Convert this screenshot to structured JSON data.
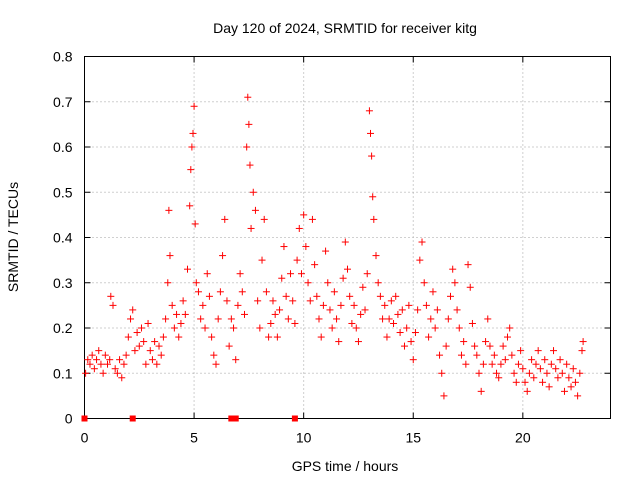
{
  "chart_data": {
    "type": "scatter",
    "title": "Day 120 of 2024, SRMTID for receiver kitg",
    "xlabel": "GPS time / hours",
    "ylabel": "SRMTID / TECUs",
    "xlim": [
      0,
      24
    ],
    "ylim": [
      0,
      0.8
    ],
    "x_ticks": [
      0,
      5,
      10,
      15,
      20
    ],
    "y_ticks": [
      0,
      0.1,
      0.2,
      0.3,
      0.4,
      0.5,
      0.6,
      0.7,
      0.8
    ],
    "x_tick_labels": [
      "0",
      "5",
      "10",
      "15",
      "20"
    ],
    "y_tick_labels": [
      "0",
      "0.1",
      "0.2",
      "0.3",
      "0.4",
      "0.5",
      "0.6",
      "0.7",
      "0.8"
    ],
    "grid": true,
    "marker": "+",
    "color": "#ff0000",
    "zero_markers_x": [
      0.0,
      2.2,
      6.7,
      6.9,
      9.6
    ],
    "points": [
      [
        0.05,
        0.1
      ],
      [
        0.15,
        0.13
      ],
      [
        0.25,
        0.12
      ],
      [
        0.35,
        0.14
      ],
      [
        0.45,
        0.11
      ],
      [
        0.55,
        0.13
      ],
      [
        0.65,
        0.15
      ],
      [
        0.75,
        0.12
      ],
      [
        0.85,
        0.1
      ],
      [
        0.95,
        0.14
      ],
      [
        1.05,
        0.12
      ],
      [
        1.15,
        0.13
      ],
      [
        1.2,
        0.27
      ],
      [
        1.3,
        0.25
      ],
      [
        1.4,
        0.11
      ],
      [
        1.5,
        0.1
      ],
      [
        1.6,
        0.13
      ],
      [
        1.7,
        0.09
      ],
      [
        1.8,
        0.12
      ],
      [
        1.9,
        0.14
      ],
      [
        2.0,
        0.18
      ],
      [
        2.1,
        0.22
      ],
      [
        2.2,
        0.24
      ],
      [
        2.3,
        0.15
      ],
      [
        2.4,
        0.19
      ],
      [
        2.5,
        0.16
      ],
      [
        2.6,
        0.2
      ],
      [
        2.7,
        0.17
      ],
      [
        2.8,
        0.12
      ],
      [
        2.9,
        0.21
      ],
      [
        3.0,
        0.15
      ],
      [
        3.1,
        0.13
      ],
      [
        3.2,
        0.17
      ],
      [
        3.3,
        0.12
      ],
      [
        3.4,
        0.16
      ],
      [
        3.5,
        0.14
      ],
      [
        3.6,
        0.18
      ],
      [
        3.7,
        0.22
      ],
      [
        3.8,
        0.3
      ],
      [
        3.85,
        0.46
      ],
      [
        3.9,
        0.36
      ],
      [
        4.0,
        0.25
      ],
      [
        4.1,
        0.2
      ],
      [
        4.2,
        0.23
      ],
      [
        4.3,
        0.18
      ],
      [
        4.4,
        0.21
      ],
      [
        4.5,
        0.26
      ],
      [
        4.6,
        0.23
      ],
      [
        4.7,
        0.33
      ],
      [
        4.8,
        0.47
      ],
      [
        4.85,
        0.55
      ],
      [
        4.9,
        0.6
      ],
      [
        4.95,
        0.63
      ],
      [
        5.0,
        0.69
      ],
      [
        5.05,
        0.43
      ],
      [
        5.1,
        0.3
      ],
      [
        5.2,
        0.28
      ],
      [
        5.3,
        0.22
      ],
      [
        5.4,
        0.25
      ],
      [
        5.5,
        0.2
      ],
      [
        5.6,
        0.32
      ],
      [
        5.7,
        0.27
      ],
      [
        5.8,
        0.18
      ],
      [
        5.9,
        0.14
      ],
      [
        6.0,
        0.12
      ],
      [
        6.1,
        0.22
      ],
      [
        6.2,
        0.28
      ],
      [
        6.3,
        0.36
      ],
      [
        6.4,
        0.44
      ],
      [
        6.5,
        0.26
      ],
      [
        6.6,
        0.16
      ],
      [
        6.7,
        0.22
      ],
      [
        6.8,
        0.2
      ],
      [
        6.9,
        0.13
      ],
      [
        7.0,
        0.25
      ],
      [
        7.1,
        0.32
      ],
      [
        7.2,
        0.28
      ],
      [
        7.3,
        0.23
      ],
      [
        7.4,
        0.6
      ],
      [
        7.45,
        0.71
      ],
      [
        7.5,
        0.65
      ],
      [
        7.55,
        0.56
      ],
      [
        7.6,
        0.42
      ],
      [
        7.7,
        0.5
      ],
      [
        7.8,
        0.46
      ],
      [
        7.9,
        0.26
      ],
      [
        8.0,
        0.2
      ],
      [
        8.1,
        0.35
      ],
      [
        8.2,
        0.44
      ],
      [
        8.3,
        0.28
      ],
      [
        8.4,
        0.18
      ],
      [
        8.5,
        0.21
      ],
      [
        8.6,
        0.26
      ],
      [
        8.7,
        0.23
      ],
      [
        8.8,
        0.18
      ],
      [
        8.9,
        0.24
      ],
      [
        9.0,
        0.31
      ],
      [
        9.1,
        0.38
      ],
      [
        9.2,
        0.27
      ],
      [
        9.3,
        0.22
      ],
      [
        9.4,
        0.32
      ],
      [
        9.5,
        0.26
      ],
      [
        9.6,
        0.21
      ],
      [
        9.7,
        0.35
      ],
      [
        9.8,
        0.42
      ],
      [
        9.9,
        0.32
      ],
      [
        10.0,
        0.45
      ],
      [
        10.1,
        0.38
      ],
      [
        10.2,
        0.3
      ],
      [
        10.3,
        0.26
      ],
      [
        10.4,
        0.44
      ],
      [
        10.5,
        0.34
      ],
      [
        10.6,
        0.27
      ],
      [
        10.7,
        0.22
      ],
      [
        10.8,
        0.18
      ],
      [
        10.9,
        0.25
      ],
      [
        11.0,
        0.37
      ],
      [
        11.1,
        0.3
      ],
      [
        11.2,
        0.24
      ],
      [
        11.3,
        0.2
      ],
      [
        11.4,
        0.28
      ],
      [
        11.5,
        0.22
      ],
      [
        11.6,
        0.17
      ],
      [
        11.7,
        0.25
      ],
      [
        11.8,
        0.31
      ],
      [
        11.9,
        0.39
      ],
      [
        12.0,
        0.33
      ],
      [
        12.1,
        0.27
      ],
      [
        12.2,
        0.21
      ],
      [
        12.3,
        0.25
      ],
      [
        12.4,
        0.2
      ],
      [
        12.5,
        0.17
      ],
      [
        12.6,
        0.23
      ],
      [
        12.7,
        0.29
      ],
      [
        12.8,
        0.24
      ],
      [
        12.9,
        0.32
      ],
      [
        13.0,
        0.68
      ],
      [
        13.05,
        0.63
      ],
      [
        13.1,
        0.58
      ],
      [
        13.15,
        0.49
      ],
      [
        13.2,
        0.44
      ],
      [
        13.3,
        0.36
      ],
      [
        13.4,
        0.3
      ],
      [
        13.5,
        0.27
      ],
      [
        13.6,
        0.22
      ],
      [
        13.7,
        0.25
      ],
      [
        13.8,
        0.18
      ],
      [
        13.9,
        0.22
      ],
      [
        14.0,
        0.26
      ],
      [
        14.1,
        0.21
      ],
      [
        14.2,
        0.27
      ],
      [
        14.3,
        0.23
      ],
      [
        14.4,
        0.19
      ],
      [
        14.5,
        0.24
      ],
      [
        14.6,
        0.16
      ],
      [
        14.7,
        0.2
      ],
      [
        14.8,
        0.25
      ],
      [
        14.9,
        0.17
      ],
      [
        15.0,
        0.13
      ],
      [
        15.1,
        0.19
      ],
      [
        15.2,
        0.24
      ],
      [
        15.3,
        0.35
      ],
      [
        15.4,
        0.39
      ],
      [
        15.5,
        0.3
      ],
      [
        15.6,
        0.25
      ],
      [
        15.7,
        0.18
      ],
      [
        15.8,
        0.22
      ],
      [
        15.9,
        0.28
      ],
      [
        16.0,
        0.2
      ],
      [
        16.1,
        0.24
      ],
      [
        16.2,
        0.14
      ],
      [
        16.3,
        0.1
      ],
      [
        16.4,
        0.05
      ],
      [
        16.5,
        0.16
      ],
      [
        16.6,
        0.22
      ],
      [
        16.7,
        0.27
      ],
      [
        16.8,
        0.33
      ],
      [
        16.9,
        0.3
      ],
      [
        17.0,
        0.24
      ],
      [
        17.1,
        0.2
      ],
      [
        17.2,
        0.14
      ],
      [
        17.3,
        0.17
      ],
      [
        17.4,
        0.12
      ],
      [
        17.5,
        0.34
      ],
      [
        17.6,
        0.29
      ],
      [
        17.7,
        0.21
      ],
      [
        17.8,
        0.16
      ],
      [
        17.9,
        0.14
      ],
      [
        18.0,
        0.1
      ],
      [
        18.1,
        0.06
      ],
      [
        18.2,
        0.12
      ],
      [
        18.3,
        0.17
      ],
      [
        18.4,
        0.22
      ],
      [
        18.5,
        0.16
      ],
      [
        18.6,
        0.12
      ],
      [
        18.7,
        0.14
      ],
      [
        18.8,
        0.1
      ],
      [
        18.9,
        0.09
      ],
      [
        19.0,
        0.12
      ],
      [
        19.1,
        0.16
      ],
      [
        19.2,
        0.13
      ],
      [
        19.3,
        0.18
      ],
      [
        19.4,
        0.2
      ],
      [
        19.5,
        0.14
      ],
      [
        19.6,
        0.1
      ],
      [
        19.7,
        0.08
      ],
      [
        19.8,
        0.12
      ],
      [
        19.9,
        0.15
      ],
      [
        20.0,
        0.11
      ],
      [
        20.1,
        0.08
      ],
      [
        20.2,
        0.06
      ],
      [
        20.3,
        0.1
      ],
      [
        20.4,
        0.13
      ],
      [
        20.5,
        0.09
      ],
      [
        20.6,
        0.12
      ],
      [
        20.7,
        0.15
      ],
      [
        20.8,
        0.11
      ],
      [
        20.9,
        0.08
      ],
      [
        21.0,
        0.13
      ],
      [
        21.1,
        0.1
      ],
      [
        21.2,
        0.07
      ],
      [
        21.3,
        0.12
      ],
      [
        21.4,
        0.15
      ],
      [
        21.5,
        0.11
      ],
      [
        21.6,
        0.09
      ],
      [
        21.7,
        0.13
      ],
      [
        21.8,
        0.1
      ],
      [
        21.9,
        0.06
      ],
      [
        22.0,
        0.12
      ],
      [
        22.1,
        0.09
      ],
      [
        22.2,
        0.07
      ],
      [
        22.3,
        0.11
      ],
      [
        22.4,
        0.08
      ],
      [
        22.5,
        0.05
      ],
      [
        22.6,
        0.1
      ],
      [
        22.7,
        0.15
      ],
      [
        22.75,
        0.17
      ]
    ]
  }
}
